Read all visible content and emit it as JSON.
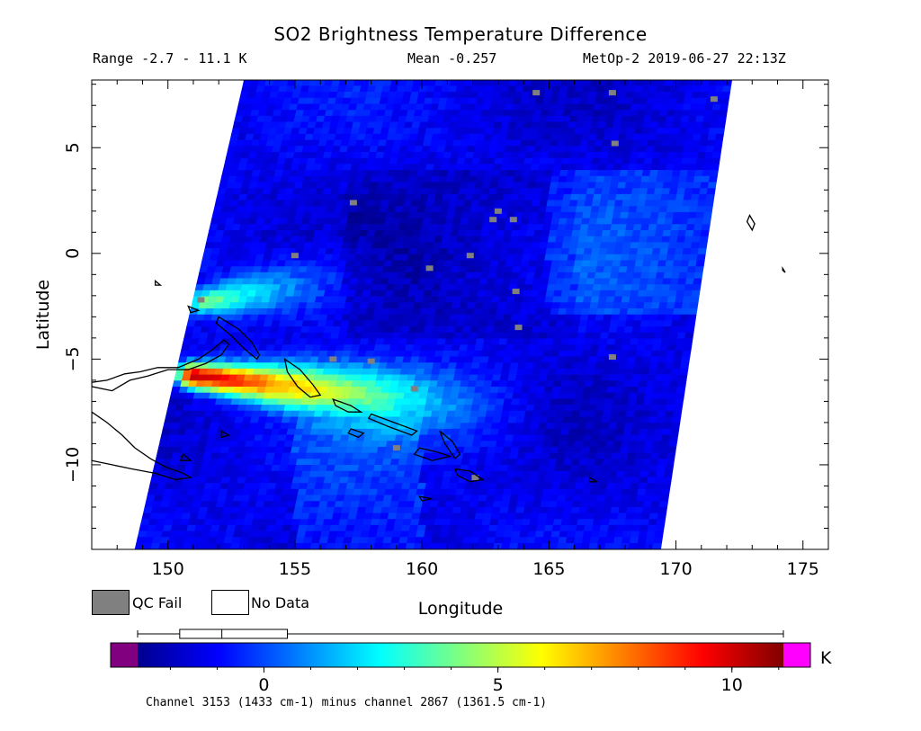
{
  "header": {
    "title": "SO2 Brightness Temperature Difference",
    "range": "Range -2.7 - 11.1 K",
    "mean": "Mean -0.257",
    "satellite_time": "MetOp-2 2019-06-27 22:13Z"
  },
  "legend": {
    "qc_fail_label": "QC Fail",
    "qc_fail_color": "#808080",
    "no_data_label": "No Data",
    "no_data_color": "#ffffff"
  },
  "colorbar": {
    "unit": "K",
    "range": [
      -2.7,
      11.1
    ],
    "ticks": [
      0,
      5,
      10
    ],
    "under_color": "#800080",
    "over_color": "#ff00ff",
    "box_whisker": {
      "min": -2.7,
      "q1": -1.8,
      "median": -0.9,
      "q3": 0.5,
      "max": 11.1
    }
  },
  "footer": "Channel 3153 (1433 cm-1) minus channel 2867 (1361.5 cm-1)",
  "chart_data": {
    "type": "heatmap",
    "title": "SO2 Brightness Temperature Difference",
    "xlabel": "Longitude",
    "ylabel": "Latitude",
    "xlim": [
      147,
      176
    ],
    "ylim": [
      -14,
      8.2
    ],
    "xticks": [
      150,
      155,
      160,
      165,
      170,
      175
    ],
    "yticks": [
      5,
      0,
      -5,
      -10
    ],
    "swath_corners": {
      "top_left_lon": 153,
      "top_right_lon": 172.2,
      "bottom_left_lon": 148.7,
      "bottom_right_lon": 169.4
    },
    "colorscale": "jet",
    "background_value_K": -1.2,
    "plumes": [
      {
        "desc": "main SO2 plume",
        "lon_start": 151,
        "lat_start": -5.8,
        "lon_end": 166,
        "lat_end": -7.8,
        "peak_K": 11
      },
      {
        "desc": "secondary plume",
        "lon_start": 151.5,
        "lat_start": -2.3,
        "lon_end": 160,
        "lat_end": -0.5,
        "peak_K": 4
      }
    ],
    "qc_fail_points": [
      {
        "lon": 164.5,
        "lat": 7.6
      },
      {
        "lon": 167.5,
        "lat": 7.6
      },
      {
        "lon": 171.5,
        "lat": 7.3
      },
      {
        "lon": 167.6,
        "lat": 5.2
      },
      {
        "lon": 157.3,
        "lat": 2.4
      },
      {
        "lon": 163.0,
        "lat": 2.0
      },
      {
        "lon": 162.8,
        "lat": 1.6
      },
      {
        "lon": 163.6,
        "lat": 1.6
      },
      {
        "lon": 161.9,
        "lat": -0.1
      },
      {
        "lon": 160.3,
        "lat": -0.7
      },
      {
        "lon": 163.7,
        "lat": -1.8
      },
      {
        "lon": 151.3,
        "lat": -2.2
      },
      {
        "lon": 163.8,
        "lat": -3.5
      },
      {
        "lon": 167.5,
        "lat": -4.9
      },
      {
        "lon": 158.0,
        "lat": -5.1
      },
      {
        "lon": 159.7,
        "lat": -6.4
      },
      {
        "lon": 159.0,
        "lat": -9.2
      },
      {
        "lon": 162.1,
        "lat": -10.6
      },
      {
        "lon": 155.0,
        "lat": -0.1
      },
      {
        "lon": 156.5,
        "lat": -5.0
      }
    ]
  }
}
